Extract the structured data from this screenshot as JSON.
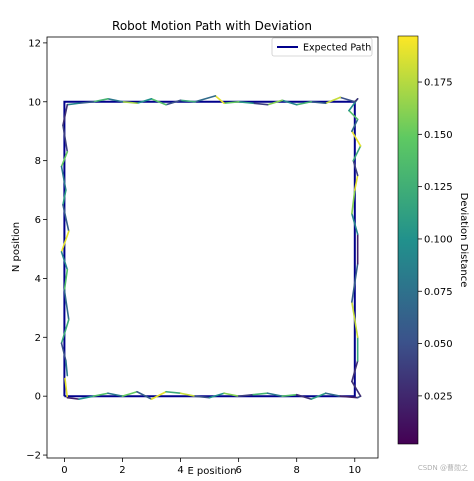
{
  "chart_data": {
    "type": "line",
    "title": "Robot Motion Path with Deviation",
    "xlabel": "E position",
    "ylabel": "N position",
    "xlim": [
      -0.6,
      10.8
    ],
    "ylim": [
      -2.1,
      12.2
    ],
    "xticks": [
      0,
      2,
      4,
      6,
      8,
      10
    ],
    "yticks": [
      -2,
      0,
      2,
      4,
      6,
      8,
      10,
      12
    ],
    "grid": false,
    "legend": {
      "position": "upper right",
      "entries": [
        {
          "label": "Expected Path",
          "color": "#00008b"
        }
      ]
    },
    "series": [
      {
        "name": "Expected Path",
        "color": "#00008b",
        "x": [
          0,
          10,
          10,
          0,
          0
        ],
        "y": [
          0,
          0,
          10,
          10,
          0
        ]
      }
    ],
    "deviation_path": {
      "colormap": "viridis",
      "x": [
        0.02,
        0.1,
        0.5,
        1.0,
        1.5,
        2.0,
        2.5,
        3.0,
        3.5,
        4.0,
        4.5,
        5.0,
        5.5,
        6.0,
        6.5,
        7.0,
        7.5,
        8.0,
        8.5,
        9.0,
        9.5,
        10.1,
        10.2,
        9.9,
        10.1,
        10.1,
        9.9,
        10.1,
        10.1,
        9.9,
        10.0,
        10.1,
        9.95,
        10.2,
        9.9,
        10.1,
        9.8,
        10.1,
        10.0,
        9.5,
        9.0,
        8.5,
        8.0,
        7.5,
        7.0,
        6.5,
        6.0,
        5.5,
        5.2,
        4.5,
        4.0,
        3.5,
        3.0,
        2.5,
        2.0,
        1.5,
        1.0,
        0.5,
        0.1,
        -0.05,
        0.1,
        -0.1,
        0.05,
        -0.05,
        0.15,
        -0.1,
        0.1,
        0.0,
        0.15,
        -0.1,
        0.05,
        0.1
      ],
      "y": [
        0.6,
        -0.05,
        -0.1,
        0.0,
        0.1,
        0.0,
        0.15,
        -0.1,
        0.15,
        0.1,
        0.0,
        -0.05,
        0.1,
        0.0,
        0.05,
        0.1,
        0.0,
        0.05,
        -0.1,
        0.1,
        0.0,
        -0.05,
        0.0,
        0.5,
        1.2,
        2.0,
        3.2,
        4.5,
        5.5,
        6.2,
        7.0,
        7.5,
        8.0,
        8.5,
        9.0,
        9.4,
        9.7,
        10.1,
        10.0,
        10.15,
        9.95,
        10.0,
        9.9,
        10.05,
        9.9,
        9.95,
        10.0,
        9.95,
        10.2,
        10.0,
        10.05,
        9.9,
        10.1,
        9.95,
        10.0,
        10.1,
        10.0,
        9.95,
        9.9,
        9.2,
        8.3,
        7.8,
        7.0,
        6.5,
        5.6,
        4.9,
        4.3,
        3.6,
        2.6,
        1.8,
        1.2,
        0.7
      ],
      "deviation": [
        0.19,
        0.02,
        0.1,
        0.14,
        0.08,
        0.15,
        0.06,
        0.19,
        0.12,
        0.18,
        0.05,
        0.1,
        0.16,
        0.04,
        0.13,
        0.08,
        0.14,
        0.03,
        0.11,
        0.07,
        0.02,
        0.05,
        0.03,
        0.03,
        0.12,
        0.18,
        0.06,
        0.02,
        0.09,
        0.16,
        0.19,
        0.04,
        0.12,
        0.19,
        0.07,
        0.14,
        0.1,
        0.03,
        0.05,
        0.18,
        0.06,
        0.13,
        0.09,
        0.16,
        0.04,
        0.11,
        0.15,
        0.19,
        0.07,
        0.12,
        0.05,
        0.14,
        0.1,
        0.17,
        0.08,
        0.13,
        0.06,
        0.09,
        0.03,
        0.04,
        0.15,
        0.08,
        0.11,
        0.06,
        0.19,
        0.09,
        0.14,
        0.07,
        0.12,
        0.05,
        0.08,
        0.16
      ]
    },
    "colorbar": {
      "label": "Deviation Distance",
      "range": [
        0.002,
        0.197
      ],
      "ticks": [
        0.025,
        0.05,
        0.075,
        0.1,
        0.125,
        0.15,
        0.175
      ],
      "tick_labels": [
        "0.025",
        "0.050",
        "0.075",
        "0.100",
        "0.125",
        "0.150",
        "0.175"
      ]
    }
  },
  "watermark": "CSDN @曹勋之"
}
